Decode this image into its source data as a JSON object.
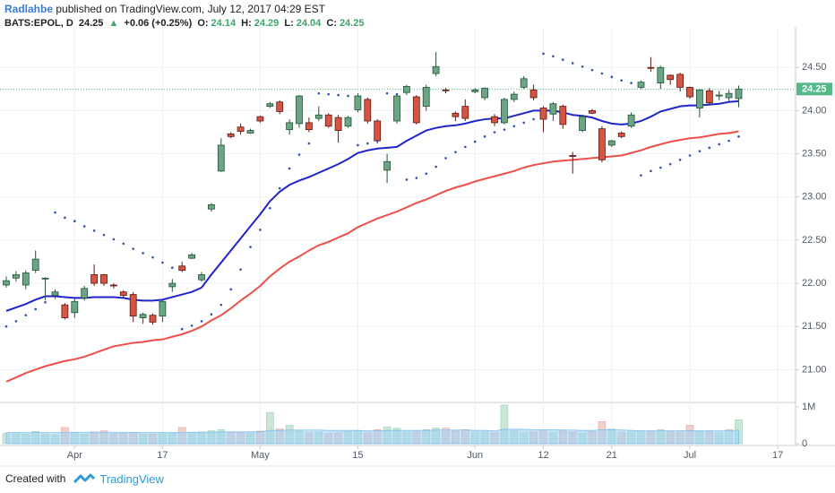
{
  "header": {
    "author": "Radlahbe",
    "published": "published on TradingView.com, July 12, 2017 04:29 EST",
    "symbol": "BATS:EPOL, D",
    "price": 24.25,
    "arrow": "▲",
    "change": "+0.06 (+0.25%)",
    "o_label": "O:",
    "open": 24.14,
    "h_label": "H:",
    "high": 24.29,
    "l_label": "L:",
    "low": 24.04,
    "c_label": "C:",
    "close": 24.25
  },
  "chart_data": {
    "type": "candlestick",
    "x": [
      "2017-03-23",
      "2017-03-24",
      "2017-03-27",
      "2017-03-28",
      "2017-03-29",
      "2017-03-30",
      "2017-03-31",
      "2017-04-03",
      "2017-04-04",
      "2017-04-05",
      "2017-04-06",
      "2017-04-07",
      "2017-04-10",
      "2017-04-11",
      "2017-04-12",
      "2017-04-13",
      "2017-04-17",
      "2017-04-18",
      "2017-04-19",
      "2017-04-20",
      "2017-04-21",
      "2017-04-24",
      "2017-04-25",
      "2017-04-26",
      "2017-04-27",
      "2017-04-28",
      "2017-05-01",
      "2017-05-02",
      "2017-05-03",
      "2017-05-04",
      "2017-05-05",
      "2017-05-08",
      "2017-05-09",
      "2017-05-10",
      "2017-05-11",
      "2017-05-12",
      "2017-05-15",
      "2017-05-16",
      "2017-05-17",
      "2017-05-18",
      "2017-05-19",
      "2017-05-22",
      "2017-05-23",
      "2017-05-24",
      "2017-05-25",
      "2017-05-26",
      "2017-05-30",
      "2017-05-31",
      "2017-06-01",
      "2017-06-02",
      "2017-06-05",
      "2017-06-06",
      "2017-06-07",
      "2017-06-08",
      "2017-06-09",
      "2017-06-12",
      "2017-06-13",
      "2017-06-14",
      "2017-06-15",
      "2017-06-16",
      "2017-06-19",
      "2017-06-20",
      "2017-06-21",
      "2017-06-22",
      "2017-06-23",
      "2017-06-26",
      "2017-06-27",
      "2017-06-28",
      "2017-06-29",
      "2017-06-30",
      "2017-07-03",
      "2017-07-05",
      "2017-07-06",
      "2017-07-07",
      "2017-07-10",
      "2017-07-11"
    ],
    "open": [
      21.98,
      22.06,
      21.98,
      22.15,
      22.05,
      21.86,
      21.75,
      21.66,
      21.83,
      22.1,
      22.1,
      21.98,
      21.9,
      21.87,
      21.6,
      21.63,
      21.62,
      21.96,
      22.2,
      22.29,
      22.04,
      22.86,
      23.3,
      23.73,
      23.81,
      23.74,
      23.93,
      24.05,
      24.1,
      23.78,
      23.85,
      23.86,
      23.91,
      23.95,
      23.92,
      23.82,
      24.01,
      24.13,
      23.88,
      23.31,
      23.88,
      24.21,
      24.16,
      24.05,
      24.43,
      24.24,
      23.97,
      24.05,
      24.22,
      24.15,
      23.93,
      23.86,
      24.13,
      24.27,
      24.24,
      24.03,
      23.96,
      24.05,
      23.48,
      23.77,
      24.0,
      23.79,
      23.6,
      23.74,
      23.82,
      24.27,
      24.5,
      24.32,
      24.41,
      24.42,
      24.27,
      24.03,
      24.23,
      24.17,
      24.15,
      24.14
    ],
    "high": [
      22.08,
      22.14,
      22.15,
      22.38,
      22.07,
      21.93,
      21.77,
      21.82,
      21.97,
      22.22,
      22.11,
      22.0,
      21.92,
      21.9,
      21.66,
      21.65,
      21.8,
      22.05,
      22.25,
      22.35,
      22.13,
      22.93,
      23.68,
      23.75,
      23.85,
      23.79,
      23.94,
      24.1,
      24.12,
      23.9,
      24.18,
      23.92,
      24.05,
      23.97,
      23.95,
      23.94,
      24.2,
      24.15,
      23.9,
      23.5,
      24.18,
      24.3,
      24.18,
      24.3,
      24.68,
      24.26,
      23.99,
      24.13,
      24.26,
      24.27,
      23.96,
      24.15,
      24.22,
      24.4,
      24.3,
      24.05,
      24.1,
      24.07,
      23.52,
      23.95,
      24.02,
      23.82,
      23.66,
      23.76,
      23.98,
      24.35,
      24.62,
      24.52,
      24.42,
      24.44,
      24.28,
      24.25,
      24.26,
      24.23,
      24.24,
      24.29
    ],
    "low": [
      21.95,
      22.02,
      21.93,
      22.12,
      21.8,
      21.82,
      21.58,
      21.6,
      21.8,
      21.97,
      21.97,
      21.94,
      21.83,
      21.55,
      21.53,
      21.52,
      21.55,
      21.9,
      22.13,
      22.28,
      22.02,
      22.83,
      23.29,
      23.68,
      23.72,
      23.73,
      23.86,
      24.03,
      23.96,
      23.72,
      23.8,
      23.75,
      23.88,
      23.8,
      23.63,
      23.8,
      23.98,
      23.85,
      23.62,
      23.16,
      23.85,
      24.18,
      23.84,
      24.0,
      24.4,
      24.2,
      23.88,
      23.88,
      24.2,
      24.12,
      23.82,
      23.84,
      24.1,
      24.25,
      24.12,
      23.75,
      23.88,
      23.79,
      23.27,
      23.75,
      23.96,
      23.4,
      23.58,
      23.68,
      23.8,
      24.25,
      24.45,
      24.25,
      24.3,
      24.22,
      24.14,
      23.92,
      24.06,
      24.12,
      24.1,
      24.04
    ],
    "close": [
      22.03,
      22.1,
      22.12,
      22.28,
      22.06,
      21.9,
      21.6,
      21.79,
      21.94,
      22.0,
      22.0,
      21.97,
      21.86,
      21.62,
      21.64,
      21.55,
      21.79,
      22.0,
      22.15,
      22.33,
      22.1,
      22.91,
      23.6,
      23.7,
      23.76,
      23.77,
      23.88,
      24.08,
      23.99,
      23.86,
      24.17,
      23.78,
      23.95,
      23.82,
      23.77,
      23.92,
      24.17,
      23.88,
      23.65,
      23.41,
      24.17,
      24.28,
      23.86,
      24.27,
      24.51,
      24.23,
      23.93,
      23.91,
      24.24,
      24.26,
      23.86,
      24.13,
      24.19,
      24.37,
      24.15,
      23.9,
      24.08,
      23.84,
      23.47,
      23.93,
      23.97,
      23.43,
      23.65,
      23.7,
      23.95,
      24.33,
      24.49,
      24.5,
      24.36,
      24.27,
      24.16,
      24.24,
      24.09,
      24.18,
      24.2,
      24.25
    ],
    "up_color": "#6ba583",
    "down_color": "#d75442",
    "up_border": "#225437",
    "down_border": "#5b1a13",
    "series": [
      {
        "color": "#1f25c9",
        "style": "line",
        "values": [
          21.68,
          21.72,
          21.76,
          21.81,
          21.85,
          21.85,
          21.84,
          21.83,
          21.83,
          21.84,
          21.84,
          21.84,
          21.83,
          21.81,
          21.8,
          21.8,
          21.81,
          21.84,
          21.87,
          21.9,
          21.95,
          22.1,
          22.24,
          22.38,
          22.52,
          22.66,
          22.8,
          22.95,
          23.06,
          23.14,
          23.19,
          23.23,
          23.28,
          23.33,
          23.38,
          23.44,
          23.51,
          23.54,
          23.56,
          23.57,
          23.58,
          23.65,
          23.71,
          23.77,
          23.8,
          23.82,
          23.83,
          23.85,
          23.88,
          23.9,
          23.91,
          23.91,
          23.94,
          23.97,
          24.0,
          24.0,
          24.0,
          23.98,
          23.95,
          23.94,
          23.92,
          23.88,
          23.85,
          23.84,
          23.85,
          23.88,
          23.93,
          23.99,
          24.02,
          24.05,
          24.06,
          24.06,
          24.07,
          24.08,
          24.1,
          24.11
        ]
      },
      {
        "color": "#ee4f48",
        "style": "line",
        "values": [
          20.86,
          20.91,
          20.96,
          21.0,
          21.04,
          21.07,
          21.1,
          21.12,
          21.15,
          21.19,
          21.23,
          21.27,
          21.29,
          21.31,
          21.32,
          21.34,
          21.35,
          21.38,
          21.41,
          21.45,
          21.5,
          21.57,
          21.63,
          21.71,
          21.8,
          21.88,
          21.97,
          22.08,
          22.17,
          22.25,
          22.31,
          22.38,
          22.44,
          22.48,
          22.53,
          22.58,
          22.65,
          22.7,
          22.75,
          22.79,
          22.83,
          22.88,
          22.93,
          22.97,
          23.02,
          23.07,
          23.11,
          23.14,
          23.18,
          23.21,
          23.24,
          23.27,
          23.3,
          23.34,
          23.37,
          23.39,
          23.41,
          23.42,
          23.43,
          23.44,
          23.45,
          23.46,
          23.47,
          23.48,
          23.51,
          23.54,
          23.58,
          23.61,
          23.64,
          23.66,
          23.68,
          23.69,
          23.71,
          23.73,
          23.74,
          23.76
        ]
      },
      {
        "color": "#3152a8",
        "style": "dots",
        "values": [
          21.5,
          21.56,
          21.63,
          21.7,
          21.78,
          22.82,
          22.76,
          22.72,
          22.66,
          22.61,
          22.56,
          22.51,
          22.46,
          22.4,
          22.35,
          22.3,
          22.24,
          22.18,
          21.47,
          21.51,
          21.56,
          21.64,
          21.75,
          21.93,
          22.16,
          22.42,
          22.62,
          22.87,
          23.1,
          23.33,
          23.49,
          23.62,
          24.2,
          24.19,
          24.18,
          24.17,
          23.6,
          23.62,
          23.65,
          24.2,
          24.19,
          23.2,
          23.22,
          23.27,
          23.35,
          23.45,
          23.52,
          23.58,
          23.64,
          23.7,
          23.75,
          23.78,
          23.82,
          23.86,
          23.9,
          24.66,
          24.63,
          24.59,
          24.55,
          24.51,
          24.47,
          24.43,
          24.39,
          24.35,
          24.32,
          23.25,
          23.3,
          23.34,
          23.38,
          23.43,
          23.48,
          23.53,
          23.57,
          23.61,
          23.65,
          23.7
        ]
      }
    ],
    "ylim": [
      20.63,
      24.97
    ],
    "yticks": [
      {
        "value": 21,
        "label": "21.00"
      },
      {
        "value": 21.5,
        "label": "21.50"
      },
      {
        "value": 22,
        "label": "22.00"
      },
      {
        "value": 22.5,
        "label": "22.50"
      },
      {
        "value": 23,
        "label": "23.00"
      },
      {
        "value": 23.5,
        "label": "23.50"
      },
      {
        "value": 24,
        "label": "24.00"
      },
      {
        "value": 24.5,
        "label": "24.50"
      }
    ],
    "xticks": [
      {
        "value": "2017-04-03",
        "label": "Apr"
      },
      {
        "value": "2017-04-17",
        "label": "17"
      },
      {
        "value": "2017-05-01",
        "label": "May"
      },
      {
        "value": "2017-05-15",
        "label": "15"
      },
      {
        "value": "2017-06-01",
        "label": "Jun"
      },
      {
        "value": "2017-06-12",
        "label": "12"
      },
      {
        "value": "2017-06-21",
        "label": "21"
      },
      {
        "value": "2017-07-03",
        "label": "Jul"
      },
      {
        "value": "2017-07-17",
        "label": "17"
      }
    ],
    "grid": true,
    "last_price": 24.25,
    "last_price_color": "#53b987",
    "volume": {
      "values": [
        280000,
        300000,
        260000,
        330000,
        250000,
        240000,
        440000,
        300000,
        260000,
        320000,
        350000,
        270000,
        280000,
        300000,
        250000,
        260000,
        300000,
        280000,
        440000,
        300000,
        320000,
        350000,
        380000,
        300000,
        320000,
        280000,
        340000,
        850000,
        400000,
        500000,
        350000,
        300000,
        320000,
        280000,
        300000,
        330000,
        350000,
        300000,
        380000,
        450000,
        420000,
        300000,
        320000,
        380000,
        420000,
        420000,
        350000,
        380000,
        300000,
        320000,
        300000,
        1050000,
        350000,
        300000,
        320000,
        380000,
        300000,
        350000,
        320000,
        280000,
        330000,
        600000,
        400000,
        300000,
        320000,
        350000,
        340000,
        380000,
        330000,
        320000,
        500000,
        330000,
        350000,
        300000,
        380000,
        650000
      ],
      "ma": [
        300000,
        300000,
        300000,
        300000,
        300000,
        300000,
        310000,
        310000,
        310000,
        310000,
        310000,
        310000,
        310000,
        310000,
        300000,
        300000,
        300000,
        300000,
        310000,
        310000,
        310000,
        310000,
        320000,
        320000,
        320000,
        320000,
        320000,
        360000,
        360000,
        370000,
        370000,
        370000,
        370000,
        360000,
        360000,
        360000,
        360000,
        350000,
        350000,
        360000,
        360000,
        360000,
        360000,
        360000,
        370000,
        370000,
        370000,
        370000,
        360000,
        360000,
        350000,
        390000,
        390000,
        390000,
        380000,
        380000,
        380000,
        370000,
        370000,
        360000,
        360000,
        380000,
        380000,
        370000,
        360000,
        350000,
        350000,
        350000,
        350000,
        350000,
        360000,
        350000,
        350000,
        350000,
        350000,
        370000
      ],
      "up_color": "#c9e6d6",
      "down_color": "#f3cfca",
      "up_border": "#9fd0b5",
      "down_border": "#e5a9a1",
      "ma_color": "#9fd2f3",
      "ylim": [
        -50000,
        1120000
      ],
      "yticks": [
        0,
        {
          "value": 1000000,
          "label": "1M"
        }
      ]
    }
  },
  "footer": {
    "created": "Created with",
    "brand": "TradingView"
  }
}
